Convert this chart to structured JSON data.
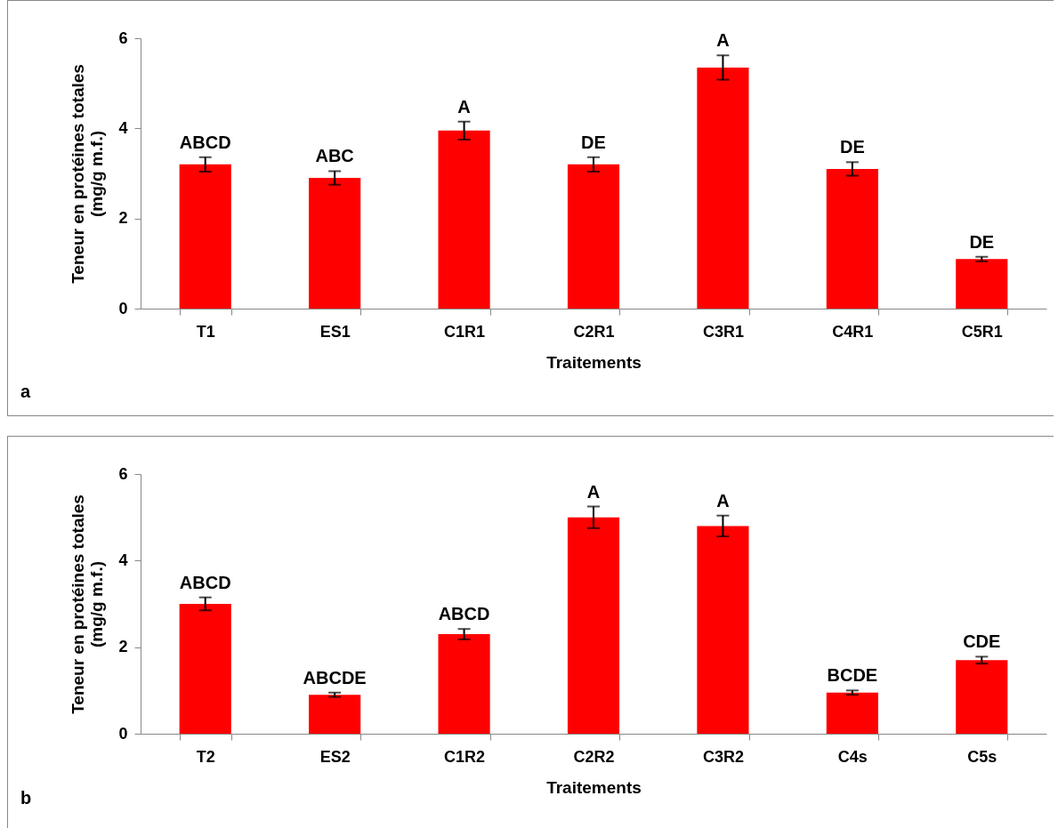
{
  "chart_data": [
    {
      "type": "bar",
      "xlabel": "Traitements",
      "ylabel": "Teneur en protéines totales\n(mg/g m.f.)",
      "categories": [
        "T1",
        "ES1",
        "C1R1",
        "C2R1",
        "C3R1",
        "C4R1",
        "C5R1"
      ],
      "values": [
        3.2,
        2.9,
        3.95,
        3.2,
        5.35,
        3.1,
        1.1
      ],
      "errors": [
        0.16,
        0.15,
        0.2,
        0.16,
        0.27,
        0.15,
        0.05
      ],
      "color": "#ff0000",
      "ylim": [
        0,
        6
      ],
      "yticks": [
        0,
        2,
        4,
        6
      ],
      "grid": false,
      "annotations": [
        "a",
        {
          "text": "ABCD",
          "x": "T1",
          "y": 3.36
        },
        {
          "text": "ABC",
          "x": "ES1",
          "y": 3.05
        },
        {
          "text": "A",
          "x": "C1R1",
          "y": 4.15
        },
        {
          "text": "DE",
          "x": "C2R1",
          "y": 3.36
        },
        {
          "text": "A",
          "x": "C3R1",
          "y": 5.62
        },
        {
          "text": "DE",
          "x": "C4R1",
          "y": 3.25
        },
        {
          "text": "DE",
          "x": "C5R1",
          "y": 1.15
        }
      ]
    },
    {
      "type": "bar",
      "xlabel": "Traitements",
      "ylabel": "Teneur en protéines totales\n(mg/g m.f.)",
      "categories": [
        "T2",
        "ES2",
        "C1R2",
        "C2R2",
        "C3R2",
        "C4s",
        "C5s"
      ],
      "values": [
        3.0,
        0.9,
        2.3,
        5.0,
        4.8,
        0.95,
        1.7
      ],
      "errors": [
        0.15,
        0.05,
        0.12,
        0.25,
        0.24,
        0.05,
        0.08
      ],
      "color": "#ff0000",
      "ylim": [
        0,
        6
      ],
      "yticks": [
        0,
        2,
        4,
        6
      ],
      "grid": false,
      "annotations": [
        "b",
        {
          "text": "ABCD",
          "x": "T2",
          "y": 3.15
        },
        {
          "text": "ABCDE",
          "x": "ES2",
          "y": 0.95
        },
        {
          "text": "ABCD",
          "x": "C1R2",
          "y": 2.42
        },
        {
          "text": "A",
          "x": "C2R2",
          "y": 5.25
        },
        {
          "text": "A",
          "x": "C3R2",
          "y": 5.04
        },
        {
          "text": "BCDE",
          "x": "C4s",
          "y": 1.0
        },
        {
          "text": "CDE",
          "x": "C5s",
          "y": 1.78
        }
      ]
    }
  ]
}
